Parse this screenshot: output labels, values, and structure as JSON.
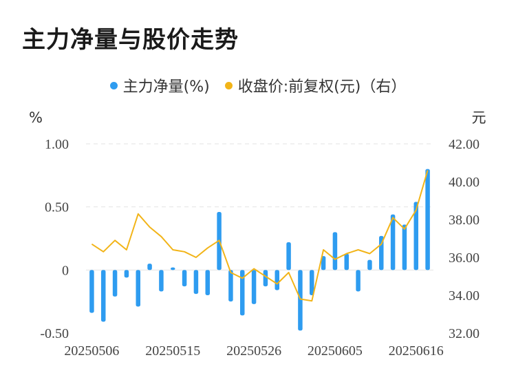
{
  "title": "主力净量与股价走势",
  "legend": {
    "bar_label": "主力净量(%)",
    "line_label": "收盘价:前复权(元)（右）"
  },
  "colors": {
    "bar": "#2e9cf0",
    "line": "#f2b418",
    "grid": "#e3e3e3"
  },
  "chart_data": {
    "type": "bar",
    "left_unit": "%",
    "right_unit": "元",
    "x_tick_labels": [
      "20250506",
      "20250515",
      "20250526",
      "20250605",
      "20250616"
    ],
    "x_tick_indices": [
      0,
      7,
      14,
      21,
      28
    ],
    "left_axis": {
      "ylim": [
        -0.5,
        1.0
      ],
      "ticks": [
        1.0,
        0.5,
        0,
        -0.5
      ],
      "tick_labels": [
        "1.00",
        "0.50",
        "0",
        "-0.50"
      ]
    },
    "right_axis": {
      "ylim": [
        32.0,
        42.0
      ],
      "ticks": [
        42,
        40,
        38,
        36,
        34,
        32
      ],
      "tick_labels": [
        "42.00",
        "40.00",
        "38.00",
        "36.00",
        "34.00",
        "32.00"
      ]
    },
    "grid": true,
    "series": [
      {
        "name": "主力净量(%)",
        "type": "bar",
        "axis": "left",
        "values": [
          -0.34,
          -0.41,
          -0.21,
          -0.06,
          -0.29,
          0.05,
          -0.17,
          0.02,
          -0.13,
          -0.19,
          -0.2,
          0.46,
          -0.25,
          -0.36,
          -0.27,
          -0.13,
          -0.16,
          0.22,
          -0.48,
          -0.2,
          0.11,
          0.3,
          0.13,
          -0.17,
          0.08,
          0.27,
          0.44,
          0.36,
          0.54,
          0.8
        ]
      },
      {
        "name": "收盘价:前复权(元)（右）",
        "type": "line",
        "axis": "right",
        "values": [
          36.7,
          36.3,
          36.9,
          36.4,
          38.3,
          37.6,
          37.1,
          36.4,
          36.3,
          36.0,
          36.5,
          36.9,
          35.2,
          34.9,
          35.4,
          35.0,
          34.6,
          35.2,
          33.8,
          33.7,
          36.4,
          35.9,
          36.2,
          36.4,
          36.2,
          36.7,
          38.1,
          37.5,
          38.5,
          40.6
        ]
      }
    ]
  }
}
